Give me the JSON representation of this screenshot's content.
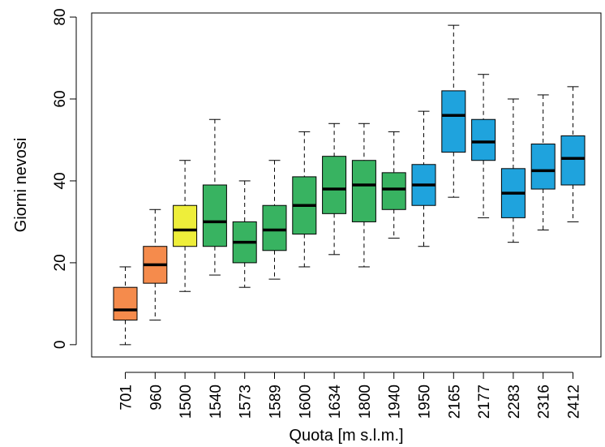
{
  "chart_data": {
    "type": "boxplot",
    "xlabel": "Quota [m s.l.m.]",
    "ylabel": "Giorni nevosi",
    "ylim": [
      -3,
      81
    ],
    "yticks": [
      0,
      20,
      40,
      60,
      80
    ],
    "grid": false,
    "colors": {
      "orange": "#F58B4C",
      "yellow": "#EEEE3A",
      "green": "#38B361",
      "blue": "#1FA3DD"
    },
    "categories": [
      "701",
      "960",
      "1500",
      "1540",
      "1573",
      "1589",
      "1600",
      "1634",
      "1800",
      "1940",
      "1950",
      "2165",
      "2177",
      "2283",
      "2316",
      "2412"
    ],
    "boxes": [
      {
        "min": 0,
        "q1": 6,
        "median": 8.5,
        "q3": 14,
        "max": 19,
        "color": "orange"
      },
      {
        "min": 6,
        "q1": 15,
        "median": 19.5,
        "q3": 24,
        "max": 33,
        "color": "orange"
      },
      {
        "min": 13,
        "q1": 24,
        "median": 28,
        "q3": 34,
        "max": 45,
        "color": "yellow"
      },
      {
        "min": 17,
        "q1": 24,
        "median": 30,
        "q3": 39,
        "max": 55,
        "color": "green"
      },
      {
        "min": 14,
        "q1": 20,
        "median": 25,
        "q3": 30,
        "max": 40,
        "color": "green"
      },
      {
        "min": 16,
        "q1": 23,
        "median": 28,
        "q3": 34,
        "max": 45,
        "color": "green"
      },
      {
        "min": 19,
        "q1": 27,
        "median": 34,
        "q3": 41,
        "max": 52,
        "color": "green"
      },
      {
        "min": 22,
        "q1": 32,
        "median": 38,
        "q3": 46,
        "max": 54,
        "color": "green"
      },
      {
        "min": 19,
        "q1": 30,
        "median": 39,
        "q3": 45,
        "max": 54,
        "color": "green"
      },
      {
        "min": 26,
        "q1": 33,
        "median": 38,
        "q3": 42,
        "max": 52,
        "color": "green"
      },
      {
        "min": 24,
        "q1": 34,
        "median": 39,
        "q3": 44,
        "max": 57,
        "color": "blue"
      },
      {
        "min": 36,
        "q1": 47,
        "median": 56,
        "q3": 62,
        "max": 78,
        "color": "blue"
      },
      {
        "min": 31,
        "q1": 45,
        "median": 49.5,
        "q3": 55,
        "max": 66,
        "color": "blue"
      },
      {
        "min": 25,
        "q1": 31,
        "median": 37,
        "q3": 43,
        "max": 60,
        "color": "blue"
      },
      {
        "min": 28,
        "q1": 38,
        "median": 42.5,
        "q3": 49,
        "max": 61,
        "color": "blue"
      },
      {
        "min": 30,
        "q1": 39,
        "median": 45.5,
        "q3": 51,
        "max": 63,
        "color": "blue"
      }
    ]
  }
}
